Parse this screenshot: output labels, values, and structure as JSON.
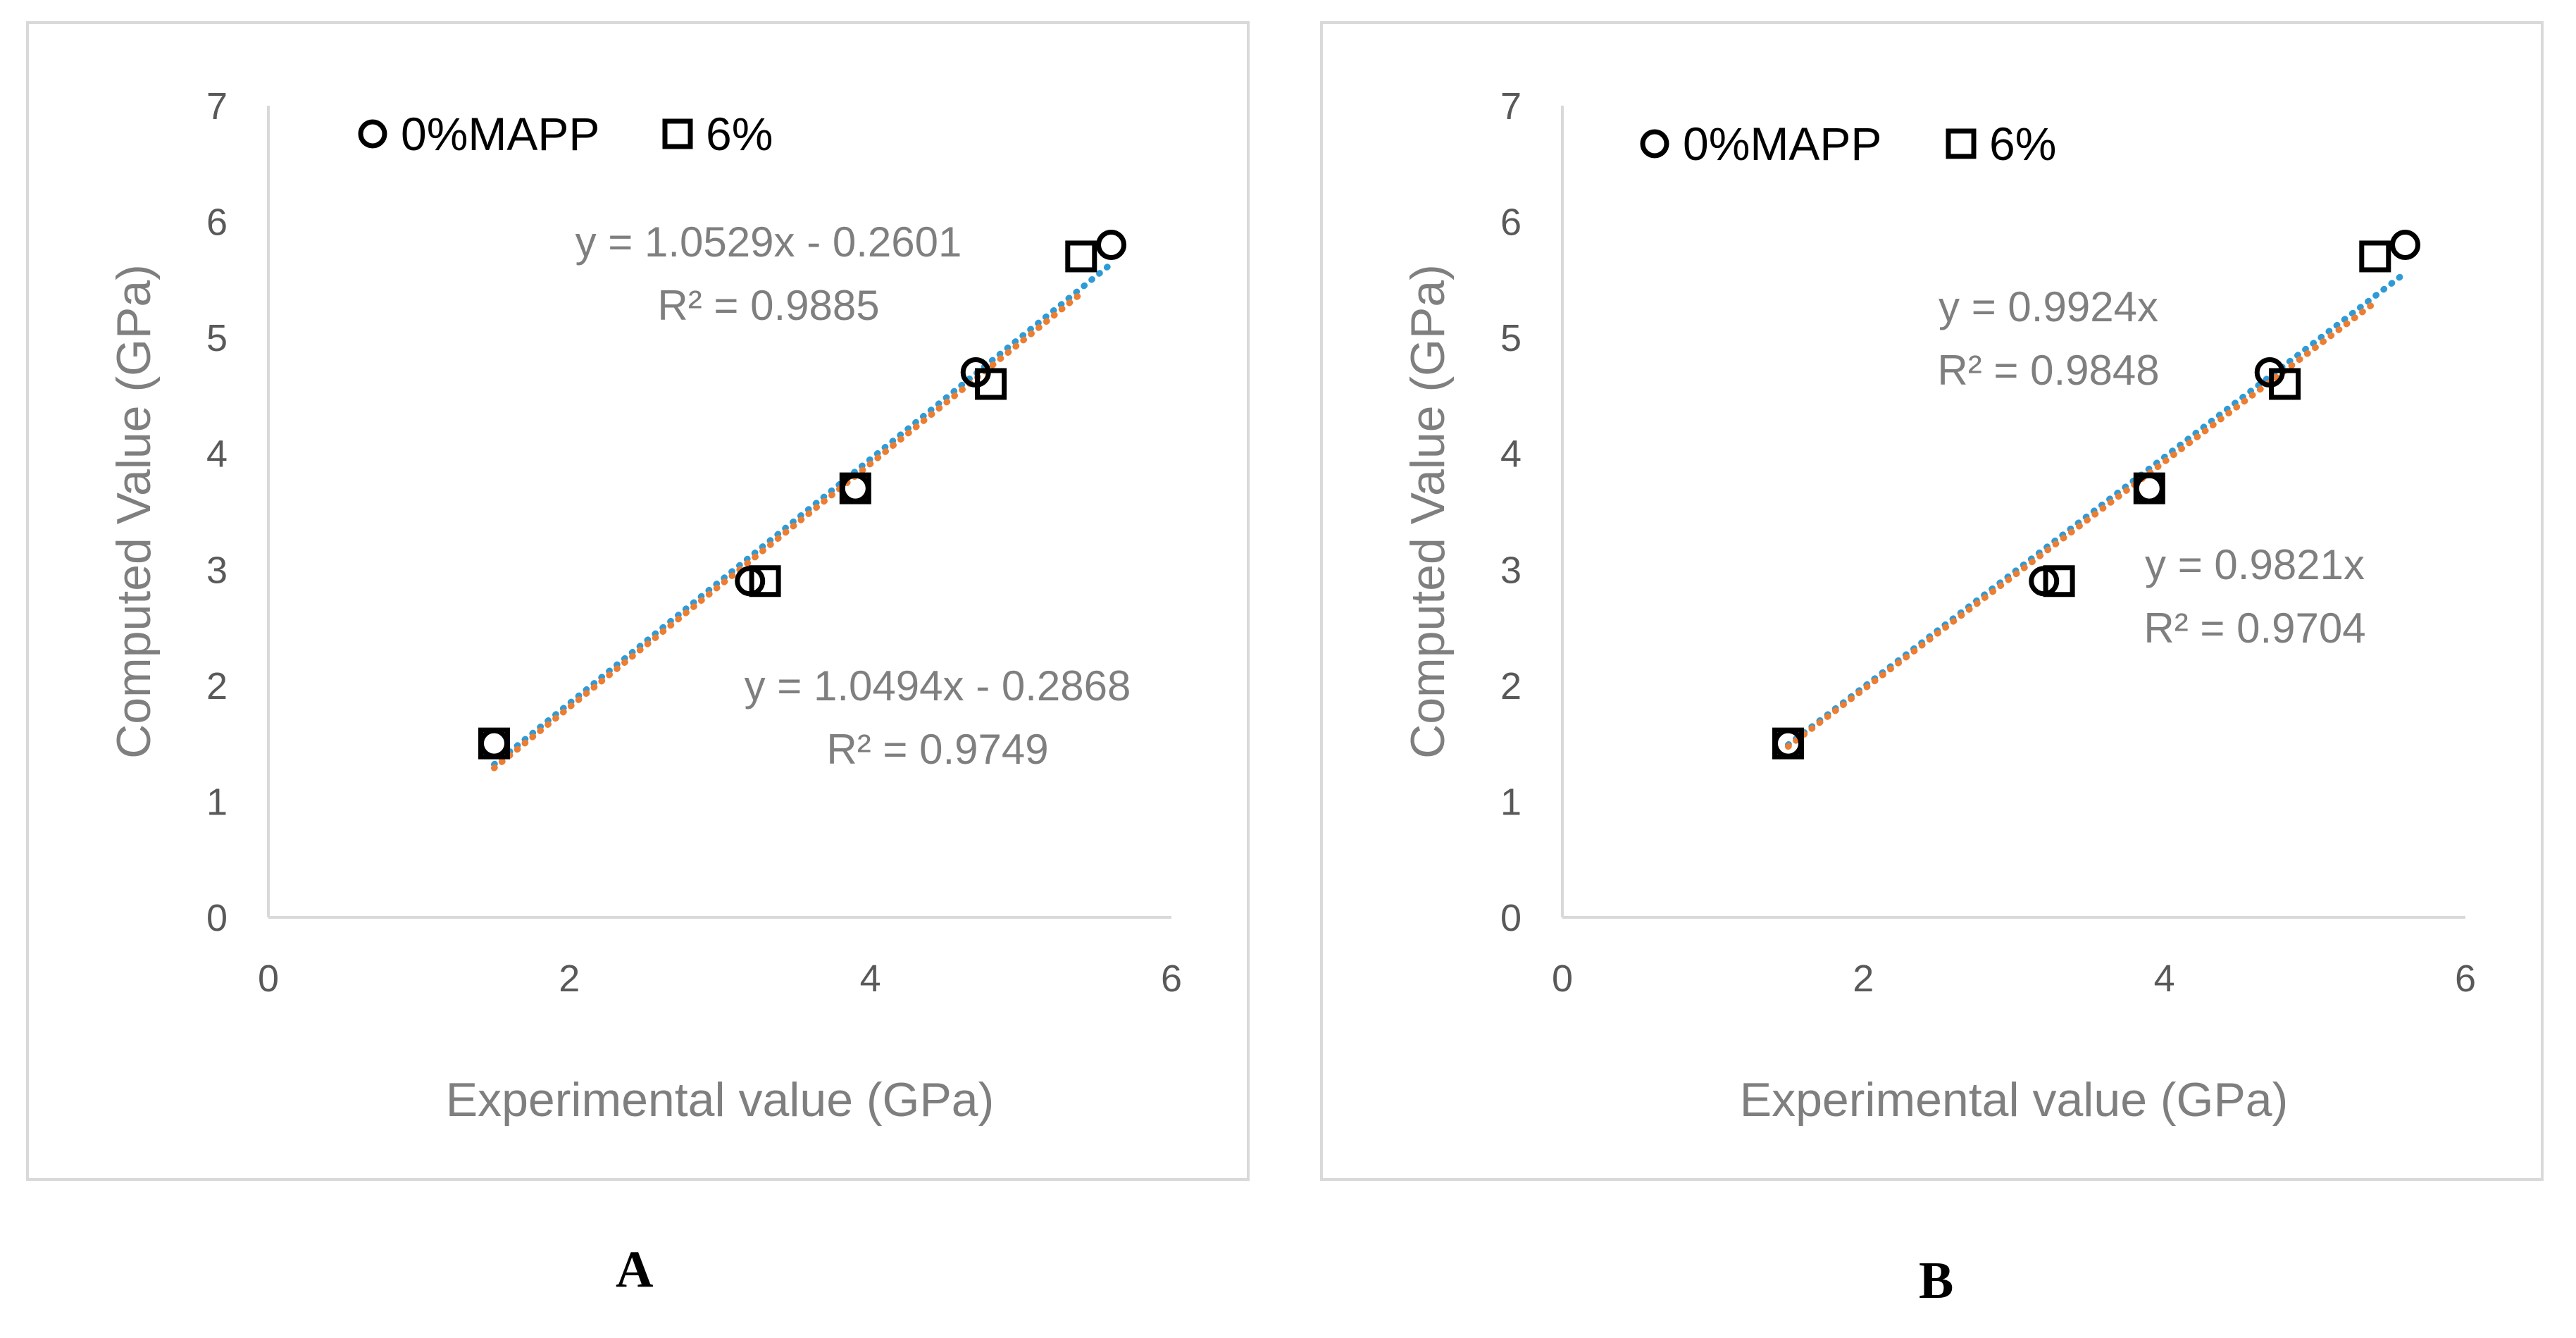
{
  "chart_data": [
    {
      "type": "scatter",
      "panel_label": "A",
      "xlabel": "Experimental value (GPa)",
      "ylabel": "Computed Value (GPa)",
      "xlim": [
        0,
        6
      ],
      "ylim": [
        0,
        7
      ],
      "x_ticks": [
        0,
        2,
        4,
        6
      ],
      "y_ticks": [
        0,
        1,
        2,
        3,
        4,
        5,
        6,
        7
      ],
      "legend_position": "top-left",
      "series": [
        {
          "name": "0%MAPP",
          "marker": "circle",
          "trend_color": "#2e9bd6",
          "points": [
            [
              1.5,
              1.5
            ],
            [
              3.2,
              2.9
            ],
            [
              3.9,
              3.7
            ],
            [
              4.7,
              4.7
            ],
            [
              5.6,
              5.8
            ]
          ],
          "trendline": {
            "slope": 1.0529,
            "intercept": -0.2601,
            "equation": "y = 1.0529x - 0.2601",
            "r2": "R² = 0.9885"
          }
        },
        {
          "name": "6%",
          "marker": "square",
          "trend_color": "#ed7d31",
          "points": [
            [
              1.5,
              1.5
            ],
            [
              3.3,
              2.9
            ],
            [
              3.9,
              3.7
            ],
            [
              4.8,
              4.6
            ],
            [
              5.4,
              5.7
            ]
          ],
          "trendline": {
            "slope": 1.0494,
            "intercept": -0.2868,
            "equation": "y = 1.0494x - 0.2868",
            "r2": "R² = 0.9749"
          }
        }
      ]
    },
    {
      "type": "scatter",
      "panel_label": "B",
      "xlabel": "Experimental value (GPa)",
      "ylabel": "Computed Value (GPa)",
      "xlim": [
        0,
        6
      ],
      "ylim": [
        0,
        7
      ],
      "x_ticks": [
        0,
        2,
        4,
        6
      ],
      "y_ticks": [
        0,
        1,
        2,
        3,
        4,
        5,
        6,
        7
      ],
      "legend_position": "top-left",
      "series": [
        {
          "name": "0%MAPP",
          "marker": "circle",
          "trend_color": "#2e9bd6",
          "points": [
            [
              1.5,
              1.5
            ],
            [
              3.2,
              2.9
            ],
            [
              3.9,
              3.7
            ],
            [
              4.7,
              4.7
            ],
            [
              5.6,
              5.8
            ]
          ],
          "trendline": {
            "slope": 0.9924,
            "intercept": 0,
            "equation": "y = 0.9924x",
            "r2": "R² = 0.9848"
          }
        },
        {
          "name": "6%",
          "marker": "square",
          "trend_color": "#ed7d31",
          "points": [
            [
              1.5,
              1.5
            ],
            [
              3.3,
              2.9
            ],
            [
              3.9,
              3.7
            ],
            [
              4.8,
              4.6
            ],
            [
              5.4,
              5.7
            ]
          ],
          "trendline": {
            "slope": 0.9821,
            "intercept": 0,
            "equation": "y = 0.9821x",
            "r2": "R² = 0.9704"
          }
        }
      ]
    }
  ]
}
